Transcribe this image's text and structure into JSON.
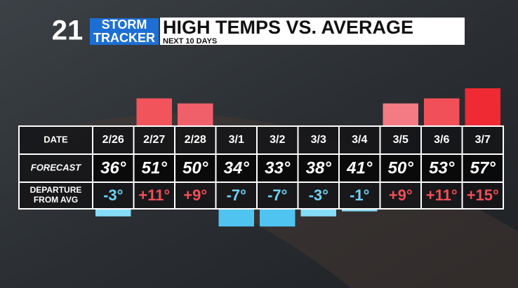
{
  "logo": {
    "number": "21",
    "line1": "STORM",
    "line2": "TRACKER"
  },
  "chart_data": {
    "type": "bar",
    "title": "HIGH TEMPS VS. AVERAGE",
    "subtitle": "NEXT 10 DAYS",
    "row_labels": {
      "date": "DATE",
      "forecast": "FORECAST",
      "departure": [
        "DEPARTURE",
        "FROM AVG"
      ]
    },
    "categories": [
      "2/26",
      "2/27",
      "2/28",
      "3/1",
      "3/2",
      "3/3",
      "3/4",
      "3/5",
      "3/6",
      "3/7"
    ],
    "forecast": [
      "36°",
      "51°",
      "50°",
      "34°",
      "33°",
      "38°",
      "41°",
      "50°",
      "53°",
      "57°"
    ],
    "departure": {
      "values": [
        -3,
        11,
        9,
        -7,
        -7,
        -3,
        -1,
        9,
        11,
        15
      ],
      "value_labels": [
        "-3°",
        "+11°",
        "+9°",
        "-7°",
        "-7°",
        "-3°",
        "-1°",
        "+9°",
        "+11°",
        "+15°"
      ],
      "colors": [
        "#86dbf6",
        "#f2545c",
        "#f0606a",
        "#4fc4f1",
        "#4fc4f1",
        "#86dbf6",
        "#86dbf6",
        "#f47a84",
        "#f25058",
        "#ef2a33"
      ],
      "positive_color": "#f0505a",
      "negative_color": "#6fd2f6"
    }
  }
}
